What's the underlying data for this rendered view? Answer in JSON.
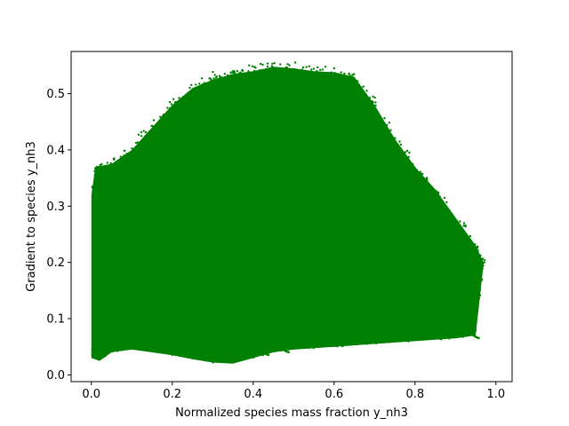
{
  "chart_data": {
    "type": "scatter",
    "title": "",
    "xlabel": "Normalized species mass fraction y_nh3",
    "ylabel": "Gradient to species y_nh3",
    "xlim": [
      -0.05,
      1.04
    ],
    "ylim": [
      -0.012,
      0.575
    ],
    "xticks": [
      0.0,
      0.2,
      0.4,
      0.6,
      0.8,
      1.0
    ],
    "xtick_labels": [
      "0.0",
      "0.2",
      "0.4",
      "0.6",
      "0.8",
      "1.0"
    ],
    "yticks": [
      0.0,
      0.1,
      0.2,
      0.3,
      0.4,
      0.5
    ],
    "ytick_labels": [
      "0.0",
      "0.1",
      "0.2",
      "0.3",
      "0.4",
      "0.5"
    ],
    "grid": false,
    "legend": "none",
    "marker_color": "#008000",
    "series": [
      {
        "upper_envelope": [
          [
            0.0,
            0.32
          ],
          [
            0.01,
            0.37
          ],
          [
            0.05,
            0.375
          ],
          [
            0.1,
            0.4
          ],
          [
            0.15,
            0.44
          ],
          [
            0.2,
            0.48
          ],
          [
            0.25,
            0.51
          ],
          [
            0.3,
            0.525
          ],
          [
            0.35,
            0.535
          ],
          [
            0.4,
            0.54
          ],
          [
            0.45,
            0.548
          ],
          [
            0.5,
            0.545
          ],
          [
            0.55,
            0.54
          ],
          [
            0.6,
            0.538
          ],
          [
            0.65,
            0.53
          ],
          [
            0.7,
            0.48
          ],
          [
            0.75,
            0.42
          ],
          [
            0.8,
            0.37
          ],
          [
            0.85,
            0.33
          ],
          [
            0.9,
            0.28
          ],
          [
            0.95,
            0.23
          ],
          [
            0.97,
            0.2
          ]
        ],
        "lower_envelope": [
          [
            0.0,
            0.03
          ],
          [
            0.02,
            0.025
          ],
          [
            0.05,
            0.04
          ],
          [
            0.1,
            0.045
          ],
          [
            0.15,
            0.04
          ],
          [
            0.2,
            0.035
          ],
          [
            0.25,
            0.028
          ],
          [
            0.3,
            0.022
          ],
          [
            0.35,
            0.02
          ],
          [
            0.4,
            0.03
          ],
          [
            0.45,
            0.04
          ],
          [
            0.5,
            0.045
          ],
          [
            0.6,
            0.05
          ],
          [
            0.7,
            0.055
          ],
          [
            0.8,
            0.06
          ],
          [
            0.9,
            0.065
          ],
          [
            0.95,
            0.07
          ],
          [
            0.97,
            0.2
          ]
        ],
        "streak_tips": [
          [
            0.1,
            0.16
          ],
          [
            0.12,
            0.14
          ],
          [
            0.15,
            0.12
          ],
          [
            0.2,
            0.1
          ],
          [
            0.25,
            0.08
          ],
          [
            0.3,
            0.06
          ],
          [
            0.35,
            0.05
          ],
          [
            0.4,
            0.04
          ],
          [
            0.45,
            0.045
          ],
          [
            0.55,
            0.06
          ],
          [
            0.65,
            0.07
          ],
          [
            0.75,
            0.075
          ],
          [
            0.85,
            0.075
          ],
          [
            0.92,
            0.07
          ]
        ]
      }
    ]
  }
}
